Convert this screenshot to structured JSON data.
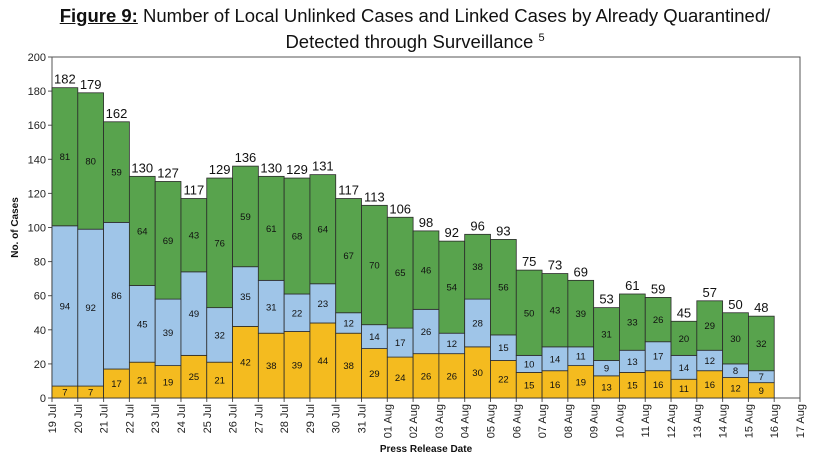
{
  "title": {
    "prefix": "Figure 9:",
    "main": "Number of Local Unlinked Cases and Linked Cases by Already Quarantined/",
    "line2": "Detected through Surveillance",
    "superscript": "5"
  },
  "chart_data": {
    "type": "bar",
    "stacked": true,
    "xlabel": "Press Release Date",
    "ylabel": "No. of Cases",
    "ylim": [
      0,
      200
    ],
    "yticks": [
      0,
      20,
      40,
      60,
      80,
      100,
      120,
      140,
      160,
      180,
      200
    ],
    "categories": [
      "19 Jul",
      "20 Jul",
      "21 Jul",
      "22 Jul",
      "23 Jul",
      "24 Jul",
      "25 Jul",
      "26 Jul",
      "27 Jul",
      "28 Jul",
      "29 Jul",
      "30 Jul",
      "31 Jul",
      "01 Aug",
      "02 Aug",
      "03 Aug",
      "04 Aug",
      "05 Aug",
      "06 Aug",
      "07 Aug",
      "08 Aug",
      "09 Aug",
      "10 Aug",
      "11 Aug",
      "12 Aug",
      "13 Aug",
      "14 Aug",
      "15 Aug",
      "16 Aug",
      "17 Aug"
    ],
    "bars": [
      {
        "date": "20 Jul",
        "bottom": 7,
        "middle": 94,
        "top": 81,
        "total": 182
      },
      {
        "date": "21 Jul",
        "bottom": 7,
        "middle": 92,
        "top": 80,
        "total": 179
      },
      {
        "date": "22 Jul",
        "bottom": 17,
        "middle": 86,
        "top": 59,
        "total": 162
      },
      {
        "date": "23 Jul",
        "bottom": 21,
        "middle": 45,
        "top": 64,
        "total": 130
      },
      {
        "date": "24 Jul",
        "bottom": 19,
        "middle": 39,
        "top": 69,
        "total": 127
      },
      {
        "date": "25 Jul",
        "bottom": 25,
        "middle": 49,
        "top": 43,
        "total": 117
      },
      {
        "date": "26 Jul",
        "bottom": 21,
        "middle": 32,
        "top": 76,
        "total": 129
      },
      {
        "date": "27 Jul",
        "bottom": 42,
        "middle": 35,
        "top": 59,
        "total": 136
      },
      {
        "date": "28 Jul",
        "bottom": 38,
        "middle": 31,
        "top": 61,
        "total": 130
      },
      {
        "date": "29 Jul",
        "bottom": 39,
        "middle": 22,
        "top": 68,
        "total": 129
      },
      {
        "date": "30 Jul",
        "bottom": 44,
        "middle": 23,
        "top": 64,
        "total": 131
      },
      {
        "date": "31 Jul",
        "bottom": 38,
        "middle": 12,
        "top": 67,
        "total": 117
      },
      {
        "date": "01 Aug",
        "bottom": 29,
        "middle": 14,
        "top": 70,
        "total": 113
      },
      {
        "date": "02 Aug",
        "bottom": 24,
        "middle": 17,
        "top": 65,
        "total": 106
      },
      {
        "date": "03 Aug",
        "bottom": 26,
        "middle": 26,
        "top": 46,
        "total": 98
      },
      {
        "date": "04 Aug",
        "bottom": 26,
        "middle": 12,
        "top": 54,
        "total": 92
      },
      {
        "date": "05 Aug",
        "bottom": 30,
        "middle": 28,
        "top": 38,
        "total": 96
      },
      {
        "date": "06 Aug",
        "bottom": 22,
        "middle": 15,
        "top": 56,
        "total": 93
      },
      {
        "date": "07 Aug",
        "bottom": 15,
        "middle": 10,
        "top": 50,
        "total": 75
      },
      {
        "date": "08 Aug",
        "bottom": 16,
        "middle": 14,
        "top": 43,
        "total": 73
      },
      {
        "date": "09 Aug",
        "bottom": 19,
        "middle": 11,
        "top": 39,
        "total": 69
      },
      {
        "date": "10 Aug",
        "bottom": 13,
        "middle": 9,
        "top": 31,
        "total": 53
      },
      {
        "date": "11 Aug",
        "bottom": 15,
        "middle": 13,
        "top": 33,
        "total": 61
      },
      {
        "date": "12 Aug",
        "bottom": 16,
        "middle": 17,
        "top": 26,
        "total": 59
      },
      {
        "date": "13 Aug",
        "bottom": 11,
        "middle": 14,
        "top": 20,
        "total": 45
      },
      {
        "date": "14 Aug",
        "bottom": 16,
        "middle": 12,
        "top": 29,
        "total": 57
      },
      {
        "date": "15 Aug",
        "bottom": 12,
        "middle": 8,
        "top": 30,
        "total": 50
      },
      {
        "date": "16 Aug",
        "bottom": 9,
        "middle": 7,
        "top": 32,
        "total": 48
      }
    ],
    "colors": {
      "top": "#58a34d",
      "middle": "#9fc5e8",
      "bottom": "#f4bb1f",
      "outline": "#2b2b2b"
    },
    "grid": false,
    "legend": "none"
  }
}
